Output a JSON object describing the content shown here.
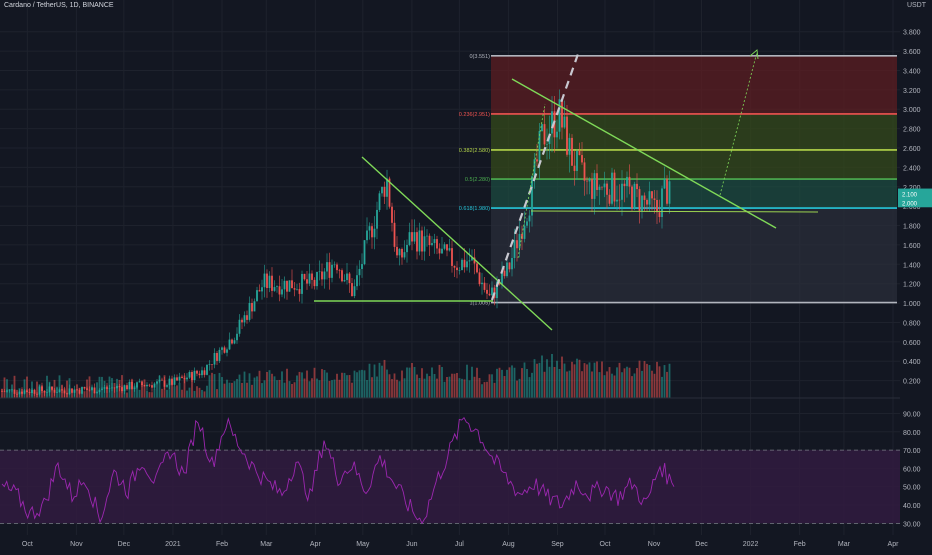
{
  "header": {
    "symbol": "Cardano / TetherUS, 1D, BINANCE",
    "currency": "USDT"
  },
  "colors": {
    "background": "#131722",
    "grid": "#1e222d",
    "up": "#26a69a",
    "down": "#ef5350",
    "rsi_line": "#9c27b0",
    "rsi_band": "#311b3f",
    "trendline": "#7fd958",
    "fib_box_target": "#5c1d22",
    "fib_box_mid": "#344a1b",
    "fib_box_low": "#1c4b40"
  },
  "chart_data": [
    {
      "type": "candlestick",
      "title": "",
      "y_axis_ticks": [
        "3.800",
        "3.600",
        "3.400",
        "3.200",
        "3.000",
        "2.800",
        "2.600",
        "2.400",
        "2.200",
        "2.000",
        "1.800",
        "1.600",
        "1.400",
        "1.200",
        "1.000",
        "0.800",
        "0.600",
        "0.400",
        "0.200"
      ],
      "ylim": [
        0.0,
        3.9
      ],
      "x_axis_ticks": [
        "Oct",
        "Nov",
        "Dec",
        "2021",
        "Feb",
        "Mar",
        "Apr",
        "May",
        "Jun",
        "Jul",
        "Aug",
        "Sep",
        "Oct",
        "Nov",
        "Dec",
        "2022",
        "Feb",
        "Mar",
        "Apr"
      ],
      "price_tags": [
        "2.100",
        "2.000"
      ],
      "close_series": [
        {
          "x": "2020-09-15",
          "y": 0.09
        },
        {
          "x": "2020-10-15",
          "y": 0.1
        },
        {
          "x": "2020-11-15",
          "y": 0.11
        },
        {
          "x": "2020-12-15",
          "y": 0.16
        },
        {
          "x": "2021-01-01",
          "y": 0.18
        },
        {
          "x": "2021-01-20",
          "y": 0.3
        },
        {
          "x": "2021-02-10",
          "y": 0.7
        },
        {
          "x": "2021-02-27",
          "y": 1.2
        },
        {
          "x": "2021-03-15",
          "y": 1.2
        },
        {
          "x": "2021-04-01",
          "y": 1.2
        },
        {
          "x": "2021-04-14",
          "y": 1.45
        },
        {
          "x": "2021-04-25",
          "y": 1.1
        },
        {
          "x": "2021-05-05",
          "y": 1.7
        },
        {
          "x": "2021-05-16",
          "y": 2.3
        },
        {
          "x": "2021-05-23",
          "y": 1.4
        },
        {
          "x": "2021-06-01",
          "y": 1.7
        },
        {
          "x": "2021-06-15",
          "y": 1.55
        },
        {
          "x": "2021-06-30",
          "y": 1.4
        },
        {
          "x": "2021-07-08",
          "y": 1.45
        },
        {
          "x": "2021-07-20",
          "y": 1.05
        },
        {
          "x": "2021-08-01",
          "y": 1.35
        },
        {
          "x": "2021-08-15",
          "y": 2.1
        },
        {
          "x": "2021-08-22",
          "y": 2.7
        },
        {
          "x": "2021-09-02",
          "y": 2.95
        },
        {
          "x": "2021-09-10",
          "y": 2.5
        },
        {
          "x": "2021-09-20",
          "y": 2.2
        },
        {
          "x": "2021-10-01",
          "y": 2.2
        },
        {
          "x": "2021-10-15",
          "y": 2.15
        },
        {
          "x": "2021-10-25",
          "y": 2.05
        },
        {
          "x": "2021-11-03",
          "y": 1.95
        },
        {
          "x": "2021-11-08",
          "y": 2.2
        },
        {
          "x": "2021-11-12",
          "y": 2.05
        }
      ],
      "fib_levels": [
        {
          "label": "0(3.551)",
          "value": 3.551,
          "color": "#b2b5be"
        },
        {
          "label": "0.236(2.951)",
          "value": 2.951,
          "color": "#ef5350"
        },
        {
          "label": "0.382(2.580)",
          "value": 2.58,
          "color": "#b5d64a"
        },
        {
          "label": "0.5(2.280)",
          "value": 2.28,
          "color": "#4caf50"
        },
        {
          "label": "0.618(1.980)",
          "value": 1.98,
          "color": "#26c6da"
        },
        {
          "label": "1(1.005)",
          "value": 1.005,
          "color": "#b2b5be"
        }
      ],
      "grid": true
    },
    {
      "type": "line",
      "title": "",
      "y_axis_ticks": [
        "90.00",
        "80.00",
        "70.00",
        "60.00",
        "50.00",
        "40.00",
        "30.00"
      ],
      "ylim": [
        28,
        93
      ],
      "band": [
        30,
        70
      ],
      "series": [
        {
          "values": [
            50,
            46,
            35,
            40,
            62,
            45,
            55,
            32,
            58,
            48,
            65,
            52,
            70,
            56,
            88,
            62,
            85,
            72,
            60,
            52,
            46,
            64,
            44,
            76,
            55,
            62,
            48,
            66,
            52,
            40,
            30,
            52,
            70,
            88,
            80,
            66,
            55,
            46,
            52,
            44,
            40,
            52,
            46,
            50,
            44,
            52,
            40,
            62,
            50
          ]
        }
      ]
    }
  ]
}
